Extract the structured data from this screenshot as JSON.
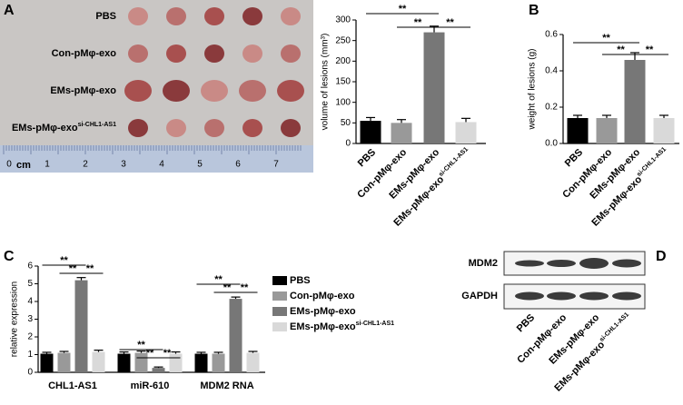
{
  "panels": [
    "A",
    "B",
    "C",
    "D"
  ],
  "photo": {
    "rows": [
      "PBS",
      "Con-pMφ-exo",
      "EMs-pMφ-exo",
      "EMs-pMφ-exo"
    ],
    "rows_sup": [
      null,
      null,
      null,
      "si-CHL1-AS1"
    ],
    "ruler": {
      "labels": [
        "0",
        "1",
        "2",
        "3",
        "4",
        "5",
        "6",
        "7"
      ],
      "unit": "cm"
    }
  },
  "chart_data": [
    {
      "type": "bar",
      "ylabel": "volume of lesions (mm³)",
      "categories": [
        "PBS",
        "Con-pMφ-exo",
        "EMs-pMφ-exo",
        "EMs-pMφ-exo"
      ],
      "categories_sup": [
        null,
        null,
        null,
        "si-CHL1-AS1"
      ],
      "values": [
        55,
        50,
        270,
        52
      ],
      "errors": [
        8,
        8,
        15,
        9
      ],
      "colors": [
        "#000000",
        "#999999",
        "#777777",
        "#d9d9d9"
      ],
      "ylim": [
        0,
        300
      ],
      "yticks": [
        0,
        50,
        100,
        150,
        200,
        250,
        300
      ],
      "annotations": [
        "**",
        "**",
        "**"
      ]
    },
    {
      "type": "bar",
      "ylabel": "weight of lesions (g)",
      "categories": [
        "PBS",
        "Con-pMφ-exo",
        "EMs-pMφ-exo",
        "EMs-pMφ-exo"
      ],
      "categories_sup": [
        null,
        null,
        null,
        "si-CHL1-AS1"
      ],
      "values": [
        0.14,
        0.14,
        0.46,
        0.14
      ],
      "errors": [
        0.015,
        0.015,
        0.04,
        0.015
      ],
      "colors": [
        "#000000",
        "#999999",
        "#777777",
        "#d9d9d9"
      ],
      "ylim": [
        0,
        0.6
      ],
      "yticks": [
        {
          "value": 0,
          "label": "0.0"
        },
        0.2,
        0.4,
        0.6
      ],
      "annotations": [
        "**",
        "**",
        "**"
      ]
    },
    {
      "type": "grouped_bar",
      "ylabel": "relative expression",
      "categories": [
        "CHL1-AS1",
        "miR-610",
        "MDM2 RNA"
      ],
      "series": [
        {
          "name": "PBS",
          "color": "#000000",
          "values": [
            1.05,
            1.05,
            1.05
          ],
          "errors": [
            0.08,
            0.1,
            0.08
          ]
        },
        {
          "name": "Con-pMφ-exo",
          "color": "#999999",
          "values": [
            1.1,
            1.1,
            1.05
          ],
          "errors": [
            0.08,
            0.1,
            0.08
          ]
        },
        {
          "name": "EMs-pMφ-exo",
          "color": "#777777",
          "values": [
            5.2,
            0.25,
            4.15
          ],
          "errors": [
            0.15,
            0.05,
            0.1
          ]
        },
        {
          "name": "EMs-pMφ-exo",
          "name_sup": "si-CHL1-AS1",
          "color": "#d9d9d9",
          "values": [
            1.15,
            1.05,
            1.1
          ],
          "errors": [
            0.1,
            0.1,
            0.08
          ]
        }
      ],
      "ylim": [
        0,
        6
      ],
      "yticks": [
        0,
        1,
        2,
        3,
        4,
        5,
        6
      ],
      "annotations": [
        "**",
        "**",
        "**",
        "**",
        "**",
        "**",
        "**",
        "**",
        "**"
      ]
    }
  ],
  "blot": {
    "rows": [
      "MDM2",
      "GAPDH"
    ],
    "columns": [
      "PBS",
      "Con-pMφ-exo",
      "EMs-pMφ-exo",
      "EMs-pMφ-exo"
    ],
    "columns_sup": [
      null,
      null,
      null,
      "si-CHL1-AS1"
    ]
  }
}
